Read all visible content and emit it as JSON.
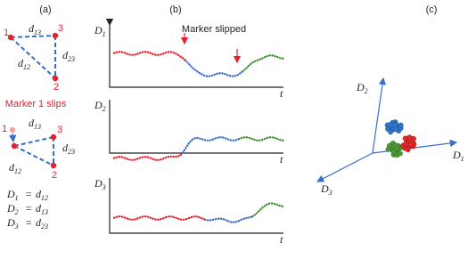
{
  "panels": {
    "a": "(a)",
    "b": "(b)",
    "c": "(c)"
  },
  "panel_a": {
    "markers": [
      "1",
      "2",
      "3"
    ],
    "distances": [
      {
        "s": "d",
        "sub": "13"
      },
      {
        "s": "d",
        "sub": "12"
      },
      {
        "s": "d",
        "sub": "23"
      }
    ],
    "slip_label": "Marker 1 slips",
    "equations": [
      {
        "lhs": {
          "s": "D",
          "sub": "1"
        },
        "op": "=",
        "rhs": {
          "s": "d",
          "sub": "12"
        }
      },
      {
        "lhs": {
          "s": "D",
          "sub": "2"
        },
        "op": "=",
        "rhs": {
          "s": "d",
          "sub": "13"
        }
      },
      {
        "lhs": {
          "s": "D",
          "sub": "3"
        },
        "op": "=",
        "rhs": {
          "s": "d",
          "sub": "23"
        }
      }
    ]
  },
  "panel_b": {
    "annotation": "Marker slipped",
    "plots": [
      {
        "ylabel": {
          "s": "D",
          "sub": "1"
        },
        "xlabel": "t"
      },
      {
        "ylabel": {
          "s": "D",
          "sub": "2"
        },
        "xlabel": "t"
      },
      {
        "ylabel": {
          "s": "D",
          "sub": "3"
        },
        "xlabel": "t"
      }
    ]
  },
  "panel_c": {
    "axes": [
      {
        "s": "D",
        "sub": "1"
      },
      {
        "s": "D",
        "sub": "2"
      },
      {
        "s": "D",
        "sub": "3"
      }
    ]
  }
}
